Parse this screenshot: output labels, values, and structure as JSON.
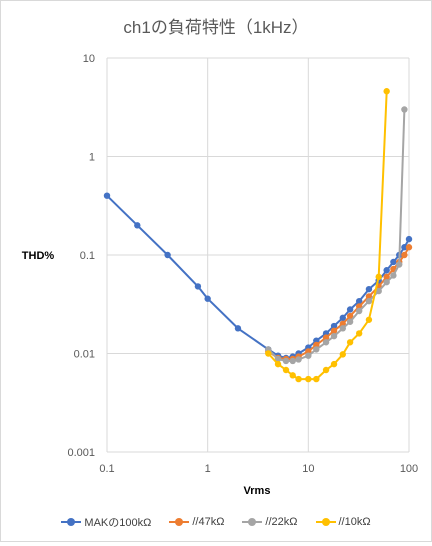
{
  "chart_data": {
    "type": "scatter",
    "title": "ch1の負荷特性（1kHz）",
    "xlabel": "Vrms",
    "ylabel": "THD%",
    "xscale": "log",
    "yscale": "log",
    "xlim": [
      0.1,
      100
    ],
    "ylim": [
      0.001,
      10
    ],
    "xticks": [
      "0.1",
      "1",
      "10",
      "100"
    ],
    "yticks": [
      "0.001",
      "0.01",
      "0.1",
      "1",
      "10"
    ],
    "grid": "on",
    "legend_position": "bottom",
    "series": [
      {
        "name": "MAKの100kΩ",
        "color": "#4472c4",
        "x": [
          0.1,
          0.2,
          0.4,
          0.8,
          1.0,
          2.0,
          4.0,
          5.0,
          6.0,
          7.0,
          8.0,
          10.0,
          12.0,
          15.0,
          18.0,
          22.0,
          26.0,
          32.0,
          40.0,
          50.0,
          60.0,
          70.0,
          80.0,
          90.0,
          100.0
        ],
        "y": [
          0.4,
          0.2,
          0.1,
          0.048,
          0.036,
          0.018,
          0.011,
          0.0095,
          0.009,
          0.0093,
          0.01,
          0.0115,
          0.0135,
          0.016,
          0.019,
          0.023,
          0.028,
          0.034,
          0.045,
          0.055,
          0.07,
          0.085,
          0.1,
          0.12,
          0.145
        ]
      },
      {
        "name": "//47kΩ",
        "color": "#ed7d31",
        "x": [
          4.0,
          5.0,
          6.0,
          7.0,
          8.0,
          10.0,
          12.0,
          15.0,
          18.0,
          22.0,
          26.0,
          32.0,
          40.0,
          50.0,
          60.0,
          70.0,
          80.0,
          90.0,
          100.0
        ],
        "y": [
          0.0105,
          0.009,
          0.0088,
          0.0088,
          0.0093,
          0.0105,
          0.0122,
          0.0145,
          0.017,
          0.02,
          0.024,
          0.03,
          0.038,
          0.048,
          0.06,
          0.072,
          0.085,
          0.1,
          0.12
        ]
      },
      {
        "name": "//22kΩ",
        "color": "#a5a5a5",
        "x": [
          4.0,
          5.0,
          6.0,
          7.0,
          8.0,
          10.0,
          12.0,
          15.0,
          18.0,
          22.0,
          26.0,
          32.0,
          40.0,
          50.0,
          60.0,
          70.0,
          80.0,
          90.0
        ],
        "y": [
          0.011,
          0.0088,
          0.0084,
          0.0084,
          0.0087,
          0.0095,
          0.011,
          0.013,
          0.015,
          0.018,
          0.021,
          0.027,
          0.034,
          0.043,
          0.053,
          0.062,
          0.08,
          3.0
        ]
      },
      {
        "name": "//10kΩ",
        "color": "#ffc000",
        "x": [
          4.0,
          5.0,
          6.0,
          7.0,
          8.0,
          10.0,
          12.0,
          15.0,
          18.0,
          22.0,
          26.0,
          32.0,
          40.0,
          50.0,
          60.0
        ],
        "y": [
          0.01,
          0.0078,
          0.0068,
          0.006,
          0.0055,
          0.0055,
          0.0055,
          0.0068,
          0.0078,
          0.0098,
          0.013,
          0.016,
          0.022,
          0.06,
          4.6
        ]
      }
    ]
  }
}
